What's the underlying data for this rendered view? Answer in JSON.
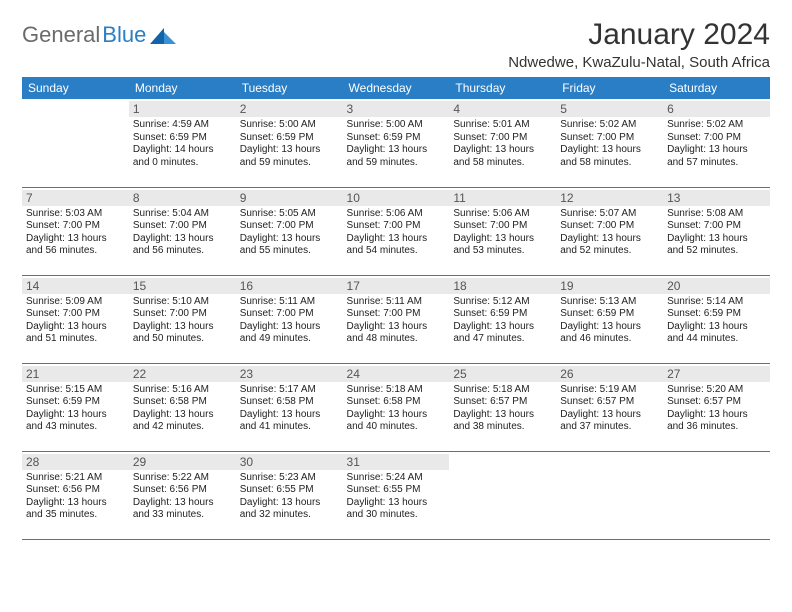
{
  "brand": {
    "word1": "General",
    "word2": "Blue"
  },
  "title": "January 2024",
  "location": "Ndwedwe, KwaZulu-Natal, South Africa",
  "colors": {
    "header_bg": "#2a7ec5",
    "header_text": "#ffffff",
    "daynum_bg": "#e9e9e9",
    "row_border": "#2a7ec5",
    "text": "#222222",
    "logo_gray": "#6b6b6b",
    "logo_blue": "#2a7ec5"
  },
  "fonts": {
    "title_size": 30,
    "location_size": 15,
    "head_size": 12,
    "daynum_size": 12,
    "body_size": 10
  },
  "weekdays": [
    "Sunday",
    "Monday",
    "Tuesday",
    "Wednesday",
    "Thursday",
    "Friday",
    "Saturday"
  ],
  "weeks": [
    [
      null,
      {
        "n": "1",
        "sr": "Sunrise: 4:59 AM",
        "ss": "Sunset: 6:59 PM",
        "d1": "Daylight: 14 hours",
        "d2": "and 0 minutes."
      },
      {
        "n": "2",
        "sr": "Sunrise: 5:00 AM",
        "ss": "Sunset: 6:59 PM",
        "d1": "Daylight: 13 hours",
        "d2": "and 59 minutes."
      },
      {
        "n": "3",
        "sr": "Sunrise: 5:00 AM",
        "ss": "Sunset: 6:59 PM",
        "d1": "Daylight: 13 hours",
        "d2": "and 59 minutes."
      },
      {
        "n": "4",
        "sr": "Sunrise: 5:01 AM",
        "ss": "Sunset: 7:00 PM",
        "d1": "Daylight: 13 hours",
        "d2": "and 58 minutes."
      },
      {
        "n": "5",
        "sr": "Sunrise: 5:02 AM",
        "ss": "Sunset: 7:00 PM",
        "d1": "Daylight: 13 hours",
        "d2": "and 58 minutes."
      },
      {
        "n": "6",
        "sr": "Sunrise: 5:02 AM",
        "ss": "Sunset: 7:00 PM",
        "d1": "Daylight: 13 hours",
        "d2": "and 57 minutes."
      }
    ],
    [
      {
        "n": "7",
        "sr": "Sunrise: 5:03 AM",
        "ss": "Sunset: 7:00 PM",
        "d1": "Daylight: 13 hours",
        "d2": "and 56 minutes."
      },
      {
        "n": "8",
        "sr": "Sunrise: 5:04 AM",
        "ss": "Sunset: 7:00 PM",
        "d1": "Daylight: 13 hours",
        "d2": "and 56 minutes."
      },
      {
        "n": "9",
        "sr": "Sunrise: 5:05 AM",
        "ss": "Sunset: 7:00 PM",
        "d1": "Daylight: 13 hours",
        "d2": "and 55 minutes."
      },
      {
        "n": "10",
        "sr": "Sunrise: 5:06 AM",
        "ss": "Sunset: 7:00 PM",
        "d1": "Daylight: 13 hours",
        "d2": "and 54 minutes."
      },
      {
        "n": "11",
        "sr": "Sunrise: 5:06 AM",
        "ss": "Sunset: 7:00 PM",
        "d1": "Daylight: 13 hours",
        "d2": "and 53 minutes."
      },
      {
        "n": "12",
        "sr": "Sunrise: 5:07 AM",
        "ss": "Sunset: 7:00 PM",
        "d1": "Daylight: 13 hours",
        "d2": "and 52 minutes."
      },
      {
        "n": "13",
        "sr": "Sunrise: 5:08 AM",
        "ss": "Sunset: 7:00 PM",
        "d1": "Daylight: 13 hours",
        "d2": "and 52 minutes."
      }
    ],
    [
      {
        "n": "14",
        "sr": "Sunrise: 5:09 AM",
        "ss": "Sunset: 7:00 PM",
        "d1": "Daylight: 13 hours",
        "d2": "and 51 minutes."
      },
      {
        "n": "15",
        "sr": "Sunrise: 5:10 AM",
        "ss": "Sunset: 7:00 PM",
        "d1": "Daylight: 13 hours",
        "d2": "and 50 minutes."
      },
      {
        "n": "16",
        "sr": "Sunrise: 5:11 AM",
        "ss": "Sunset: 7:00 PM",
        "d1": "Daylight: 13 hours",
        "d2": "and 49 minutes."
      },
      {
        "n": "17",
        "sr": "Sunrise: 5:11 AM",
        "ss": "Sunset: 7:00 PM",
        "d1": "Daylight: 13 hours",
        "d2": "and 48 minutes."
      },
      {
        "n": "18",
        "sr": "Sunrise: 5:12 AM",
        "ss": "Sunset: 6:59 PM",
        "d1": "Daylight: 13 hours",
        "d2": "and 47 minutes."
      },
      {
        "n": "19",
        "sr": "Sunrise: 5:13 AM",
        "ss": "Sunset: 6:59 PM",
        "d1": "Daylight: 13 hours",
        "d2": "and 46 minutes."
      },
      {
        "n": "20",
        "sr": "Sunrise: 5:14 AM",
        "ss": "Sunset: 6:59 PM",
        "d1": "Daylight: 13 hours",
        "d2": "and 44 minutes."
      }
    ],
    [
      {
        "n": "21",
        "sr": "Sunrise: 5:15 AM",
        "ss": "Sunset: 6:59 PM",
        "d1": "Daylight: 13 hours",
        "d2": "and 43 minutes."
      },
      {
        "n": "22",
        "sr": "Sunrise: 5:16 AM",
        "ss": "Sunset: 6:58 PM",
        "d1": "Daylight: 13 hours",
        "d2": "and 42 minutes."
      },
      {
        "n": "23",
        "sr": "Sunrise: 5:17 AM",
        "ss": "Sunset: 6:58 PM",
        "d1": "Daylight: 13 hours",
        "d2": "and 41 minutes."
      },
      {
        "n": "24",
        "sr": "Sunrise: 5:18 AM",
        "ss": "Sunset: 6:58 PM",
        "d1": "Daylight: 13 hours",
        "d2": "and 40 minutes."
      },
      {
        "n": "25",
        "sr": "Sunrise: 5:18 AM",
        "ss": "Sunset: 6:57 PM",
        "d1": "Daylight: 13 hours",
        "d2": "and 38 minutes."
      },
      {
        "n": "26",
        "sr": "Sunrise: 5:19 AM",
        "ss": "Sunset: 6:57 PM",
        "d1": "Daylight: 13 hours",
        "d2": "and 37 minutes."
      },
      {
        "n": "27",
        "sr": "Sunrise: 5:20 AM",
        "ss": "Sunset: 6:57 PM",
        "d1": "Daylight: 13 hours",
        "d2": "and 36 minutes."
      }
    ],
    [
      {
        "n": "28",
        "sr": "Sunrise: 5:21 AM",
        "ss": "Sunset: 6:56 PM",
        "d1": "Daylight: 13 hours",
        "d2": "and 35 minutes."
      },
      {
        "n": "29",
        "sr": "Sunrise: 5:22 AM",
        "ss": "Sunset: 6:56 PM",
        "d1": "Daylight: 13 hours",
        "d2": "and 33 minutes."
      },
      {
        "n": "30",
        "sr": "Sunrise: 5:23 AM",
        "ss": "Sunset: 6:55 PM",
        "d1": "Daylight: 13 hours",
        "d2": "and 32 minutes."
      },
      {
        "n": "31",
        "sr": "Sunrise: 5:24 AM",
        "ss": "Sunset: 6:55 PM",
        "d1": "Daylight: 13 hours",
        "d2": "and 30 minutes."
      },
      null,
      null,
      null
    ]
  ]
}
